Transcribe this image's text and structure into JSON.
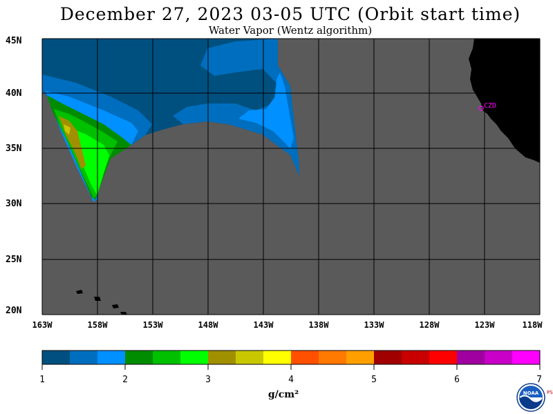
{
  "header": {
    "title": "December 27, 2023  03-05 UTC  (Orbit start time)",
    "subtitle": "Water Vapor (Wentz algorithm)"
  },
  "map": {
    "lat_labels": [
      "45N",
      "40N",
      "35N",
      "30N",
      "25N",
      "20N"
    ],
    "lon_labels": [
      "163W",
      "158W",
      "153W",
      "148W",
      "143W",
      "138W",
      "133W",
      "128W",
      "123W",
      "118W"
    ],
    "station_label": "CZD",
    "colors": {
      "no_data": "#5a5a5a",
      "land": "#000000",
      "grid": "#000000",
      "station": "#ff00ff"
    }
  },
  "colorbar": {
    "labels": [
      "1",
      "2",
      "3",
      "4",
      "5",
      "6",
      "7"
    ],
    "units": "g/cm²",
    "colors": [
      "#00507f",
      "#006ebe",
      "#0090ff",
      "#008c00",
      "#00c000",
      "#00ff00",
      "#a09000",
      "#c8c800",
      "#ffff00",
      "#ff5000",
      "#ff7800",
      "#ffa000",
      "#a00000",
      "#c80000",
      "#ff0000",
      "#a000a0",
      "#c800c8",
      "#ff00ff"
    ]
  },
  "logo": {
    "text": "NOAA",
    "side_text": "PSL"
  }
}
